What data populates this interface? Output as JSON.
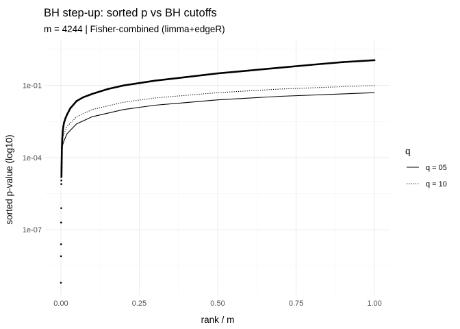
{
  "chart_data": {
    "type": "scatter",
    "title": "BH step-up: sorted p vs BH cutoffs",
    "subtitle": "m = 4244  |  Fisher-combined (limma+edgeR)",
    "xlabel": "rank / m",
    "ylabel": "sorted p-value (log10)",
    "xlim": [
      -0.05,
      1.05
    ],
    "ylim_log10": [
      -9.7,
      0.9
    ],
    "y_scale": "log10",
    "x_ticks": [
      0,
      0.25,
      0.5,
      0.75,
      1
    ],
    "x_tick_labels": [
      "0.00",
      "0.25",
      "0.50",
      "0.75",
      "1.00"
    ],
    "y_ticks_log10": [
      -7,
      -4,
      -1
    ],
    "y_tick_labels": [
      "1e-07",
      "1e-04",
      "1e-01"
    ],
    "grid": true,
    "legend": {
      "title": "q",
      "placement": "right",
      "entries": [
        {
          "label": "q = 05",
          "linetype": "solid"
        },
        {
          "label": "q = 10",
          "linetype": "dotted"
        }
      ]
    },
    "series": [
      {
        "kind": "points",
        "x": [
          0.0002,
          0.0005,
          0.0007,
          0.0009,
          0.0012,
          0.0014,
          0.0016,
          0.0019,
          0.0021,
          0.0024,
          0.0026,
          0.0028,
          0.0031,
          0.0033,
          0.0038,
          0.0045,
          0.006,
          0.008,
          0.01,
          0.015,
          0.02,
          0.03,
          0.04,
          0.05,
          0.07,
          0.1,
          0.15,
          0.2,
          0.25,
          0.3,
          0.4,
          0.5,
          0.6,
          0.7,
          0.8,
          0.9,
          1.0
        ],
        "y_log10": [
          -9.2,
          -8.1,
          -7.6,
          -6.7,
          -6.1,
          -5.1,
          -4.95,
          -4.8,
          -4.6,
          -4.4,
          -4.2,
          -4.0,
          -3.8,
          -3.6,
          -3.4,
          -3.2,
          -2.9,
          -2.7,
          -2.55,
          -2.35,
          -2.2,
          -1.95,
          -1.8,
          -1.65,
          -1.5,
          -1.35,
          -1.15,
          -1.0,
          -0.9,
          -0.8,
          -0.65,
          -0.5,
          -0.38,
          -0.26,
          -0.14,
          -0.03,
          0.05
        ]
      },
      {
        "name": "q = 05",
        "kind": "line",
        "linetype": "solid",
        "x": [
          0.0003,
          0.002,
          0.005,
          0.01,
          0.02,
          0.05,
          0.1,
          0.2,
          0.3,
          0.5,
          0.7,
          1.0
        ],
        "y_log10": [
          -4.85,
          -3.9,
          -3.5,
          -3.3,
          -3.0,
          -2.6,
          -2.3,
          -2.0,
          -1.82,
          -1.6,
          -1.45,
          -1.3
        ]
      },
      {
        "name": "q = 10",
        "kind": "line",
        "linetype": "dotted",
        "x": [
          0.0003,
          0.002,
          0.005,
          0.01,
          0.02,
          0.05,
          0.1,
          0.2,
          0.3,
          0.5,
          0.7,
          1.0
        ],
        "y_log10": [
          -4.55,
          -3.6,
          -3.2,
          -3.0,
          -2.7,
          -2.3,
          -2.0,
          -1.7,
          -1.52,
          -1.3,
          -1.15,
          -1.0
        ]
      }
    ]
  }
}
